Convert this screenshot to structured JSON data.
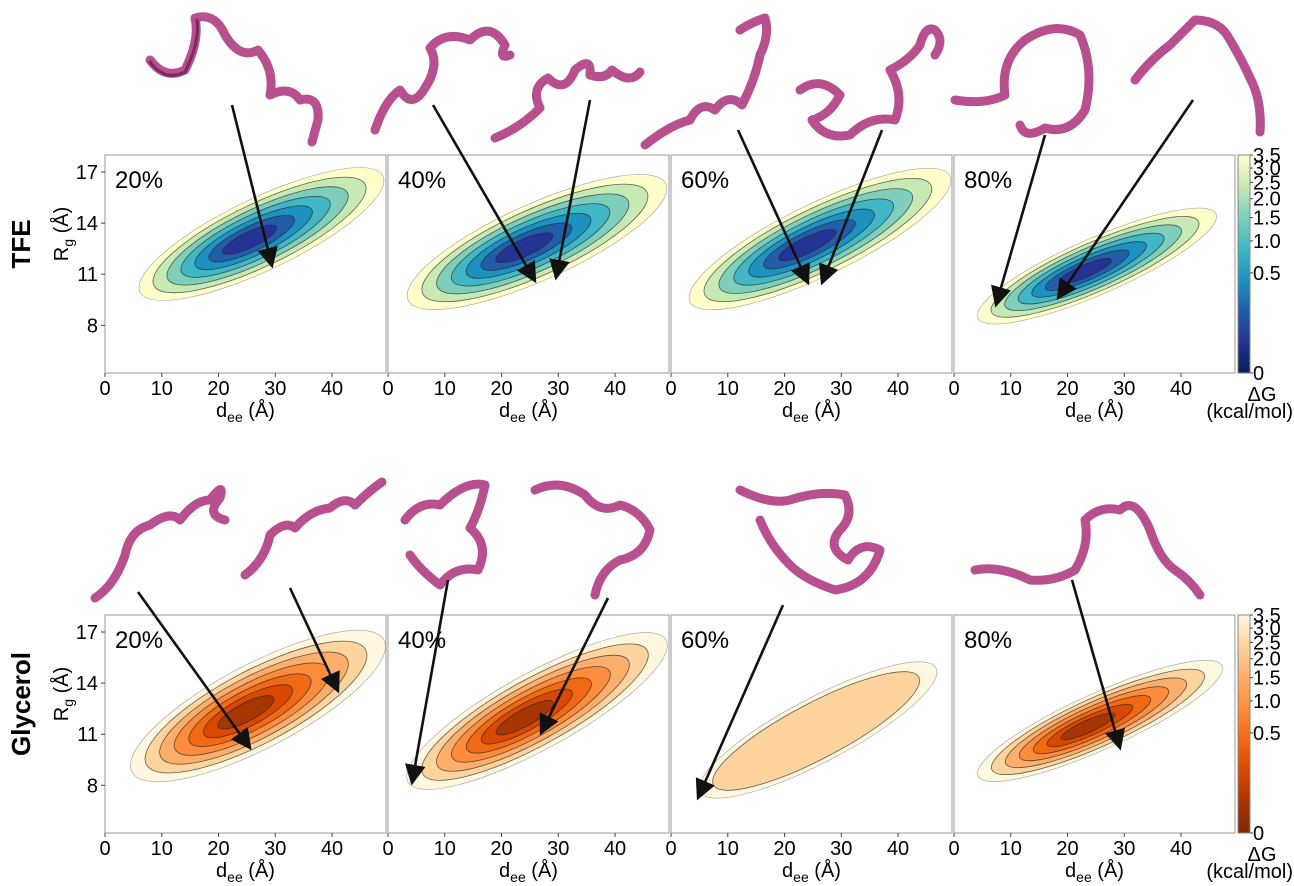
{
  "figure": {
    "rows": [
      {
        "label": "TFE",
        "colorbar": {
          "clim": [
            0,
            3.5
          ],
          "gamma": 0.4,
          "ticks": [
            0,
            0.5,
            {
              "value": 1,
              "label": "1.0"
            },
            1.5,
            {
              "value": 2,
              "label": "2.0"
            },
            2.5,
            {
              "value": 3,
              "label": "3.0"
            },
            3.5
          ],
          "label": [
            "ΔG",
            "(kcal/mol)"
          ],
          "colormap": [
            "#081d58",
            "#253494",
            "#225ea8",
            "#1d91c0",
            "#41b6c4",
            "#7fcdbb",
            "#c7e9b4",
            "#ffffcc"
          ]
        }
      },
      {
        "label": "Glycerol",
        "colorbar": {
          "clim": [
            0,
            3.5
          ],
          "gamma": 0.4,
          "ticks": [
            0,
            0.5,
            {
              "value": 1,
              "label": "1.0"
            },
            1.5,
            {
              "value": 2,
              "label": "2.0"
            },
            2.5,
            {
              "value": 3,
              "label": "3.0"
            },
            3.5
          ],
          "label": [
            "ΔG",
            "(kcal/mol)"
          ],
          "colormap": [
            "#7f2704",
            "#a63603",
            "#d94801",
            "#f16913",
            "#fd8d3c",
            "#fdae6b",
            "#fdd49e",
            "#fff7e0"
          ]
        }
      }
    ]
  },
  "chart_data": [
    {
      "type": "contour",
      "annotation": "20%",
      "xlabel": [
        "d",
        "ee",
        " (Å)"
      ],
      "ylabel": [
        "R",
        "g",
        " (Å)"
      ],
      "xlim": [
        0,
        49.5
      ],
      "ylim": [
        5.2,
        18
      ],
      "xticks": [
        0,
        10,
        20,
        30,
        40
      ],
      "yticks": [
        8,
        11,
        14,
        17
      ]
    },
    {
      "type": "contour",
      "annotation": "40%",
      "xlabel": [
        "d",
        "ee",
        " (Å)"
      ],
      "xlim": [
        0,
        49.5
      ],
      "ylim": [
        5.2,
        18
      ],
      "xticks": [
        0,
        10,
        20,
        30,
        40
      ]
    },
    {
      "type": "contour",
      "annotation": "60%",
      "xlabel": [
        "d",
        "ee",
        " (Å)"
      ],
      "xlim": [
        0,
        49.5
      ],
      "ylim": [
        5.2,
        18
      ],
      "xticks": [
        0,
        10,
        20,
        30,
        40
      ]
    },
    {
      "type": "contour",
      "annotation": "80%",
      "xlabel": [
        "d",
        "ee",
        " (Å)"
      ],
      "xlim": [
        0,
        49.5
      ],
      "ylim": [
        5.2,
        18
      ],
      "xticks": [
        0,
        10,
        20,
        30,
        40
      ]
    },
    {
      "type": "contour",
      "annotation": "20%",
      "xlabel": [
        "d",
        "ee",
        " (Å)"
      ],
      "ylabel": [
        "R",
        "g",
        " (Å)"
      ],
      "xlim": [
        0,
        49.5
      ],
      "ylim": [
        5.2,
        18
      ],
      "xticks": [
        0,
        10,
        20,
        30,
        40
      ],
      "yticks": [
        8,
        11,
        14,
        17
      ]
    },
    {
      "type": "contour",
      "annotation": "40%",
      "xlabel": [
        "d",
        "ee",
        " (Å)"
      ],
      "xlim": [
        0,
        49.5
      ],
      "ylim": [
        5.2,
        18
      ],
      "xticks": [
        0,
        10,
        20,
        30,
        40
      ]
    },
    {
      "type": "contour",
      "annotation": "60%",
      "xlabel": [
        "d",
        "ee",
        " (Å)"
      ],
      "xlim": [
        0,
        49.5
      ],
      "ylim": [
        5.2,
        18
      ],
      "xticks": [
        0,
        10,
        20,
        30,
        40
      ]
    },
    {
      "type": "contour",
      "annotation": "80%",
      "xlabel": [
        "d",
        "ee",
        " (Å)"
      ],
      "xlim": [
        0,
        49.5
      ],
      "ylim": [
        5.2,
        18
      ],
      "xticks": [
        0,
        10,
        20,
        30,
        40
      ]
    }
  ]
}
